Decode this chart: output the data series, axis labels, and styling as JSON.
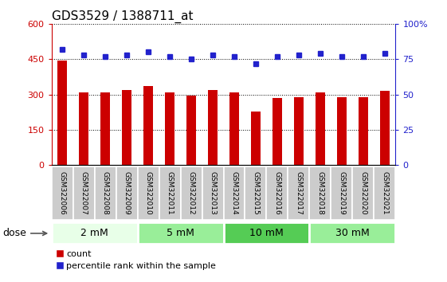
{
  "title": "GDS3529 / 1388711_at",
  "categories": [
    "GSM322006",
    "GSM322007",
    "GSM322008",
    "GSM322009",
    "GSM322010",
    "GSM322011",
    "GSM322012",
    "GSM322013",
    "GSM322014",
    "GSM322015",
    "GSM322016",
    "GSM322017",
    "GSM322018",
    "GSM322019",
    "GSM322020",
    "GSM322021"
  ],
  "bar_values": [
    445,
    310,
    308,
    318,
    335,
    308,
    295,
    318,
    308,
    228,
    285,
    290,
    310,
    290,
    290,
    315
  ],
  "percentile_values": [
    82,
    78,
    77,
    78,
    80,
    77,
    75,
    78,
    77,
    72,
    77,
    78,
    79,
    77,
    77,
    79
  ],
  "bar_color": "#cc0000",
  "percentile_color": "#2222cc",
  "ylim_left": [
    0,
    600
  ],
  "ylim_right": [
    0,
    100
  ],
  "yticks_left": [
    0,
    150,
    300,
    450,
    600
  ],
  "ytick_labels_left": [
    "0",
    "150",
    "300",
    "450",
    "600"
  ],
  "yticks_right": [
    0,
    25,
    50,
    75,
    100
  ],
  "ytick_labels_right": [
    "0",
    "25",
    "50",
    "75",
    "100%"
  ],
  "dose_groups": [
    {
      "label": "2 mM",
      "start": 0,
      "end": 4,
      "color": "#e8ffe8"
    },
    {
      "label": "5 mM",
      "start": 4,
      "end": 8,
      "color": "#66dd66"
    },
    {
      "label": "10 mM",
      "start": 8,
      "end": 12,
      "color": "#66dd66"
    },
    {
      "label": "30 mM",
      "start": 12,
      "end": 16,
      "color": "#66dd66"
    }
  ],
  "dose_label": "dose",
  "legend_count_label": "count",
  "legend_percentile_label": "percentile rank within the sample",
  "tick_area_bg": "#cccccc",
  "plot_bg": "#ffffff",
  "title_fontsize": 11,
  "tick_label_fontsize": 8,
  "dose_fontsize": 9,
  "legend_fontsize": 8
}
